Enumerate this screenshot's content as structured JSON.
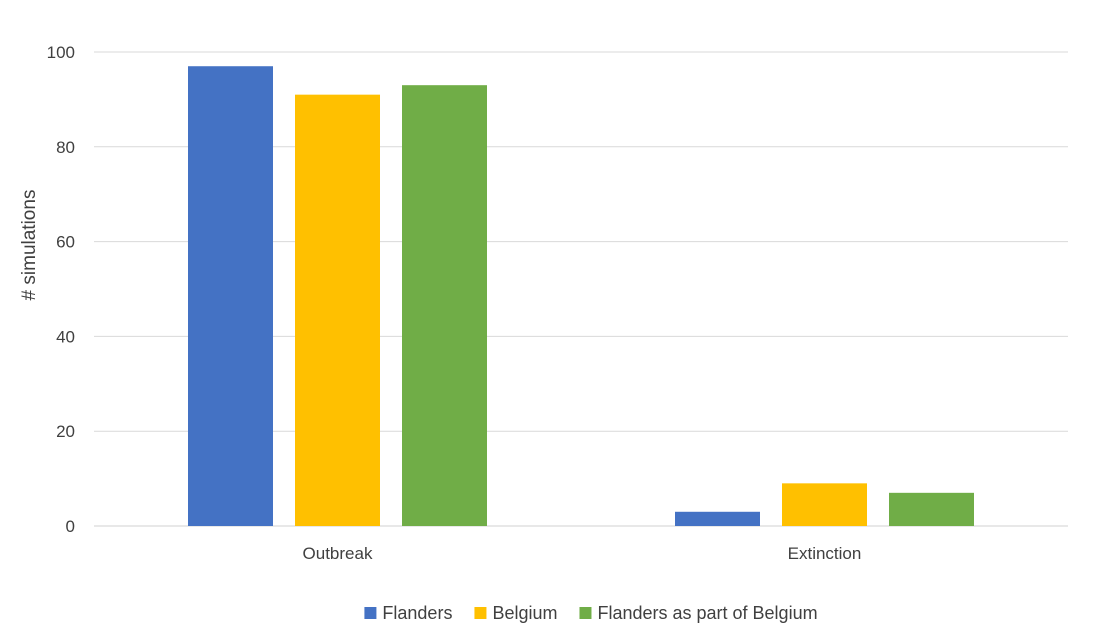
{
  "chart_data": {
    "type": "bar",
    "title": "",
    "xlabel": "",
    "ylabel": "# simulations",
    "categories": [
      "Outbreak",
      "Extinction"
    ],
    "series": [
      {
        "name": "Flanders",
        "values": [
          97,
          3
        ],
        "color": "#4472C4"
      },
      {
        "name": "Belgium",
        "values": [
          91,
          9
        ],
        "color": "#FFC000"
      },
      {
        "name": "Flanders as part of Belgium",
        "values": [
          93,
          7
        ],
        "color": "#70AD47"
      }
    ],
    "ylim": [
      0,
      100
    ],
    "yticks": [
      "0",
      "20",
      "40",
      "60",
      "80",
      "100"
    ],
    "grid": true,
    "legend_position": "bottom"
  }
}
